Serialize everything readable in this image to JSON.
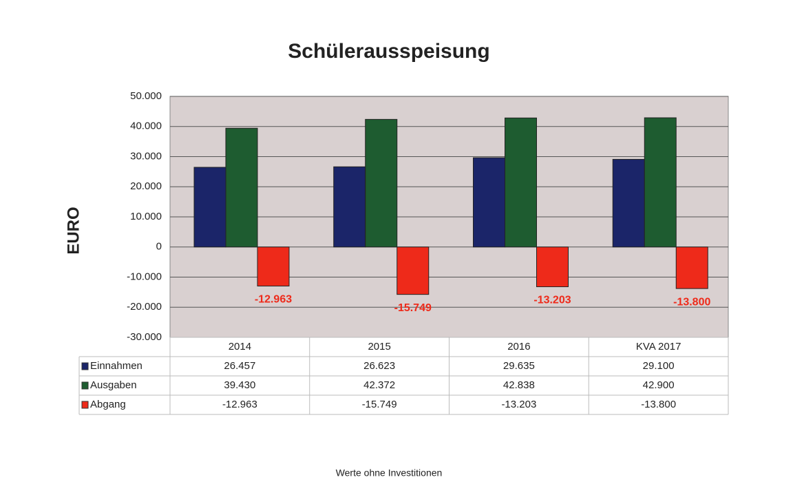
{
  "chart_data": {
    "type": "bar",
    "title": "Schülerausspeisung",
    "y_label": "EURO",
    "footnote": "Werte ohne Investitionen",
    "categories": [
      "2014",
      "2015",
      "2016",
      "KVA 2017"
    ],
    "series": [
      {
        "name": "Einnahmen",
        "color": "#1b2569",
        "values": [
          26457,
          26623,
          29635,
          29100
        ],
        "value_labels": [
          "26.457",
          "26.623",
          "29.635",
          "29.100"
        ]
      },
      {
        "name": "Ausgaben",
        "color": "#1e5c30",
        "values": [
          39430,
          42372,
          42838,
          42900
        ],
        "value_labels": [
          "39.430",
          "42.372",
          "42.838",
          "42.900"
        ]
      },
      {
        "name": "Abgang",
        "color": "#ee2a1a",
        "values": [
          -12963,
          -15749,
          -13203,
          -13800
        ],
        "value_labels": [
          "-12.963",
          "-15.749",
          "-13.203",
          "-13.800"
        ]
      }
    ],
    "data_label_series": 2,
    "ylim": [
      -30000,
      50000
    ],
    "yticks": [
      {
        "value": -30000,
        "label": "-30.000"
      },
      {
        "value": -20000,
        "label": "-20.000"
      },
      {
        "value": -10000,
        "label": "-10.000"
      },
      0,
      {
        "value": 10000,
        "label": "10.000"
      },
      {
        "value": 20000,
        "label": "20.000"
      },
      {
        "value": 30000,
        "label": "30.000"
      },
      {
        "value": 40000,
        "label": "40.000"
      },
      {
        "value": 50000,
        "label": "50.000"
      }
    ],
    "grid": true
  }
}
